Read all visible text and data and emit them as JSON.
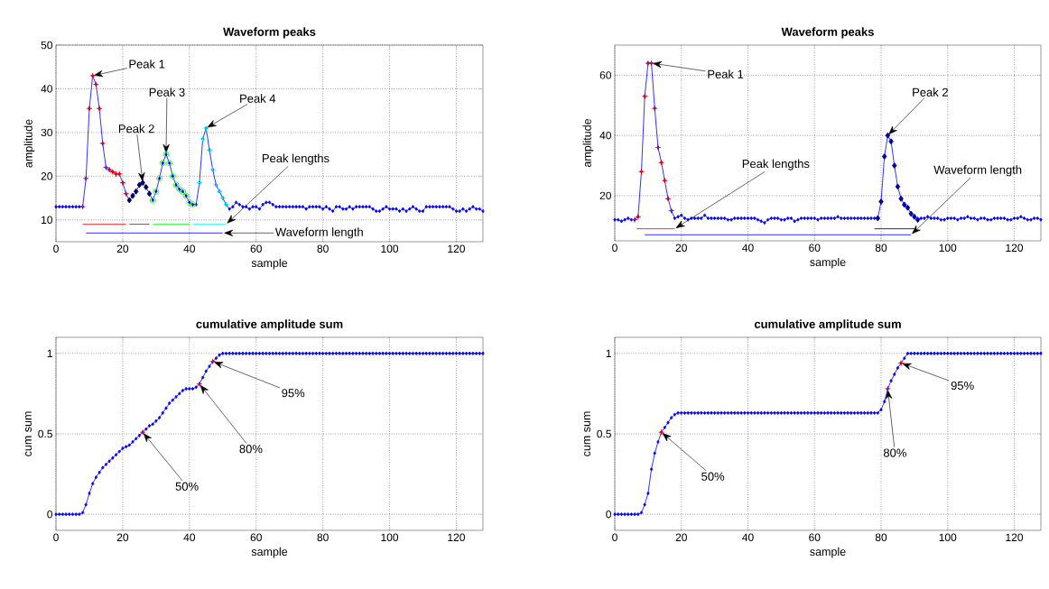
{
  "chart_data": [
    {
      "type": "line",
      "title": "Waveform peaks",
      "xlabel": "sample",
      "ylabel": "amplitude",
      "xlim": [
        0,
        128
      ],
      "ylim": [
        5,
        50
      ],
      "xticks": [
        0,
        20,
        40,
        60,
        80,
        100,
        120
      ],
      "yticks": [
        10,
        20,
        30,
        40,
        50
      ],
      "grid": true,
      "marker": "diamond",
      "x": [
        0,
        1,
        2,
        3,
        4,
        5,
        6,
        7,
        8,
        9,
        10,
        11,
        12,
        13,
        14,
        15,
        16,
        17,
        18,
        19,
        20,
        21,
        22,
        23,
        24,
        25,
        26,
        27,
        28,
        29,
        30,
        31,
        32,
        33,
        34,
        35,
        36,
        37,
        38,
        39,
        40,
        41,
        42,
        43,
        44,
        45,
        46,
        47,
        48,
        49,
        50,
        51,
        52,
        53,
        54,
        55,
        56,
        57,
        58,
        59,
        60,
        61,
        62,
        63,
        64,
        65,
        66,
        67,
        68,
        69,
        70,
        71,
        72,
        73,
        74,
        75,
        76,
        77,
        78,
        79,
        80,
        81,
        82,
        83,
        84,
        85,
        86,
        87,
        88,
        89,
        90,
        91,
        92,
        93,
        94,
        95,
        96,
        97,
        98,
        99,
        100,
        101,
        102,
        103,
        104,
        105,
        106,
        107,
        108,
        109,
        110,
        111,
        112,
        113,
        114,
        115,
        116,
        117,
        118,
        119,
        120,
        121,
        122,
        123,
        124,
        125,
        126,
        127,
        128
      ],
      "series": [
        {
          "color": "#0000ff",
          "values": [
            13,
            13,
            13,
            13,
            13,
            13,
            13,
            13,
            13,
            19.5,
            35.5,
            43,
            41,
            35.5,
            27.5,
            22,
            21.5,
            21,
            20.5,
            20.5,
            18.5,
            16,
            14.5,
            15.5,
            16.5,
            18,
            18.5,
            17.5,
            16,
            14.5,
            16.5,
            19.5,
            23,
            25,
            23,
            20,
            18,
            17,
            16.5,
            15.5,
            14,
            13.5,
            13.5,
            18.5,
            28.5,
            31,
            26,
            21.5,
            18,
            16.5,
            15,
            13.5,
            12.5,
            13,
            14,
            13.5,
            13,
            13,
            12.5,
            13,
            13,
            12.5,
            13.5,
            14,
            14,
            13.5,
            13,
            13,
            13,
            13,
            13,
            13,
            13,
            13,
            13,
            12.5,
            13,
            13,
            13,
            13,
            12.5,
            13,
            12.5,
            12,
            13,
            13,
            12.5,
            12.5,
            13,
            12.5,
            13,
            13,
            13,
            13,
            13,
            12.5,
            12,
            12,
            12.5,
            13,
            12.5,
            12.5,
            12.5,
            12,
            12.5,
            12,
            12.5,
            13,
            12.5,
            12,
            12,
            13,
            13,
            13,
            13,
            13,
            13,
            13,
            13,
            12.5,
            12,
            12,
            12.5,
            12,
            12.5,
            13,
            12.5,
            12.5,
            12
          ]
        },
        {
          "type": "scatter",
          "marker": "cross",
          "color": "#ff0000",
          "x": [
            8,
            9,
            10,
            11,
            12,
            13,
            14,
            15,
            16,
            17,
            18,
            19,
            20,
            21
          ],
          "values": [
            13,
            19.5,
            35.5,
            43,
            41,
            35.5,
            27.5,
            22,
            21.5,
            21,
            20.5,
            20.5,
            18.5,
            16
          ]
        },
        {
          "type": "scatter",
          "marker": "diamond",
          "color": "#000066",
          "x": [
            22,
            23,
            24,
            25,
            26,
            27,
            28
          ],
          "values": [
            14.5,
            15.5,
            16.5,
            18,
            18.5,
            17.5,
            16
          ]
        },
        {
          "type": "scatter",
          "marker": "circle",
          "color": "#00ff00",
          "x": [
            29,
            30,
            31,
            32,
            33,
            34,
            35,
            36,
            37,
            38,
            39,
            40,
            41
          ],
          "values": [
            14.5,
            16.5,
            19.5,
            23,
            25,
            23,
            20,
            18,
            17,
            16.5,
            15.5,
            14,
            13.5
          ]
        },
        {
          "type": "scatter",
          "marker": "cross",
          "color": "#00ffff",
          "x": [
            43,
            44,
            45,
            46,
            47,
            48,
            49,
            50,
            51
          ],
          "values": [
            18.5,
            28.5,
            31,
            26,
            21.5,
            18,
            16.5,
            15,
            13.5
          ]
        },
        {
          "type": "line",
          "marker": "none",
          "color": "#ff0000",
          "x": [
            8,
            21
          ],
          "values": [
            9,
            9
          ]
        },
        {
          "type": "line",
          "marker": "none",
          "color": "#303030",
          "x": [
            22,
            28
          ],
          "values": [
            9,
            9
          ]
        },
        {
          "type": "line",
          "marker": "none",
          "color": "#00ff00",
          "x": [
            29,
            40
          ],
          "values": [
            9,
            9
          ]
        },
        {
          "type": "line",
          "marker": "none",
          "color": "#00ffff",
          "x": [
            41,
            51
          ],
          "values": [
            9,
            9
          ]
        },
        {
          "type": "line",
          "marker": "none",
          "color": "#0000ff",
          "x": [
            9,
            50
          ],
          "values": [
            7,
            7
          ]
        }
      ],
      "annotations": [
        {
          "text": "Peak 1",
          "x": 11,
          "y": 43
        },
        {
          "text": "Peak 2",
          "x": 26,
          "y": 18.5
        },
        {
          "text": "Peak 3",
          "x": 33,
          "y": 25
        },
        {
          "text": "Peak 4",
          "x": 45,
          "y": 31
        },
        {
          "text": "Peak lengths",
          "x": 51,
          "y": 9
        },
        {
          "text": "Waveform length",
          "x": 50,
          "y": 7
        }
      ]
    },
    {
      "type": "line",
      "title": "Waveform peaks",
      "xlabel": "sample",
      "ylabel": "amplitude",
      "xlim": [
        0,
        128
      ],
      "ylim": [
        5,
        70
      ],
      "xticks": [
        0,
        20,
        40,
        60,
        80,
        100,
        120
      ],
      "yticks": [
        20,
        40,
        60
      ],
      "grid": true,
      "marker": "diamond",
      "x": [
        0,
        1,
        2,
        3,
        4,
        5,
        6,
        7,
        8,
        9,
        10,
        11,
        12,
        13,
        14,
        15,
        16,
        17,
        18,
        19,
        20,
        21,
        22,
        23,
        24,
        25,
        26,
        27,
        28,
        29,
        30,
        31,
        32,
        33,
        34,
        35,
        36,
        37,
        38,
        39,
        40,
        41,
        42,
        43,
        44,
        45,
        46,
        47,
        48,
        49,
        50,
        51,
        52,
        53,
        54,
        55,
        56,
        57,
        58,
        59,
        60,
        61,
        62,
        63,
        64,
        65,
        66,
        67,
        68,
        69,
        70,
        71,
        72,
        73,
        74,
        75,
        76,
        77,
        78,
        79,
        80,
        81,
        82,
        83,
        84,
        85,
        86,
        87,
        88,
        89,
        90,
        91,
        92,
        93,
        94,
        95,
        96,
        97,
        98,
        99,
        100,
        101,
        102,
        103,
        104,
        105,
        106,
        107,
        108,
        109,
        110,
        111,
        112,
        113,
        114,
        115,
        116,
        117,
        118,
        119,
        120,
        121,
        122,
        123,
        124,
        125,
        126,
        127,
        128
      ],
      "series": [
        {
          "color": "#0000ff",
          "values": [
            12,
            12,
            11.5,
            12,
            12.5,
            12,
            12,
            13,
            28,
            53,
            64,
            64,
            49,
            36,
            31,
            25,
            19,
            15,
            12.5,
            13,
            13.5,
            12.5,
            12,
            12.5,
            12.5,
            12.5,
            12.5,
            13.5,
            12.5,
            12.5,
            12.5,
            12.5,
            12.5,
            12.5,
            12,
            12,
            12.5,
            12.5,
            12.5,
            12.5,
            12.5,
            12.5,
            12.5,
            12,
            11.5,
            11,
            12,
            12.5,
            12.5,
            12.5,
            12,
            12,
            12.5,
            12.5,
            11.5,
            12,
            12.5,
            12.5,
            12.5,
            12.5,
            12.5,
            12,
            12.5,
            12.5,
            12.5,
            12.5,
            12.5,
            13,
            12.5,
            12.5,
            12.5,
            12.5,
            12.5,
            12.5,
            12.5,
            12.5,
            12.5,
            12.5,
            12.5,
            12.5,
            18,
            33,
            40,
            38,
            30,
            23,
            19,
            17,
            16,
            14,
            13,
            12,
            12.5,
            12.5,
            13,
            12.5,
            12.5,
            12.5,
            12,
            12,
            12.5,
            12.5,
            12.5,
            12,
            12.5,
            12.5,
            13,
            12.5,
            12.5,
            12,
            12.5,
            12.5,
            12,
            12,
            12.5,
            12.5,
            12.5,
            12.5,
            12,
            12,
            12.5,
            12.5,
            13,
            12.5,
            12,
            12,
            12.5,
            12.5,
            12
          ]
        },
        {
          "type": "scatter",
          "marker": "cross",
          "color": "#ff0000",
          "x": [
            6,
            7,
            8,
            9,
            10,
            11,
            12,
            13,
            14,
            15,
            16,
            17
          ],
          "values": [
            12,
            13,
            28,
            53,
            64,
            64,
            49,
            36,
            31,
            25,
            19,
            15
          ]
        },
        {
          "type": "scatter",
          "marker": "diamond",
          "color": "#0000aa",
          "x": [
            79,
            80,
            81,
            82,
            83,
            84,
            85,
            86,
            87,
            88,
            89,
            90,
            91
          ],
          "values": [
            12.5,
            18,
            33,
            40,
            38,
            30,
            23,
            19,
            17,
            16,
            14,
            13,
            12
          ]
        },
        {
          "type": "line",
          "marker": "none",
          "color": "#ff0000",
          "x": [
            6.5,
            18
          ],
          "values": [
            9,
            9
          ]
        },
        {
          "type": "line",
          "marker": "none",
          "color": "#000000",
          "x": [
            78,
            90
          ],
          "values": [
            9,
            9
          ]
        },
        {
          "type": "line",
          "marker": "none",
          "color": "#0000ff",
          "x": [
            9,
            89
          ],
          "values": [
            7,
            7
          ]
        }
      ],
      "annotations": [
        {
          "text": "Peak 1",
          "x": 11,
          "y": 64
        },
        {
          "text": "Peak 2",
          "x": 82,
          "y": 40
        },
        {
          "text": "Peak lengths",
          "x": 18,
          "y": 9
        },
        {
          "text": "Waveform length",
          "x": 89,
          "y": 7
        }
      ]
    },
    {
      "type": "line",
      "title": "cumulative amplitude sum",
      "xlabel": "sample",
      "ylabel": "cum sum",
      "xlim": [
        0,
        128
      ],
      "ylim": [
        -0.1,
        1.1
      ],
      "xticks": [
        0,
        20,
        40,
        60,
        80,
        100,
        120
      ],
      "yticks": [
        0,
        0.5,
        1
      ],
      "grid": true,
      "marker": "diamond",
      "x": [
        0,
        1,
        2,
        3,
        4,
        5,
        6,
        7,
        8,
        9,
        10,
        11,
        12,
        13,
        14,
        15,
        16,
        17,
        18,
        19,
        20,
        21,
        22,
        23,
        24,
        25,
        26,
        27,
        28,
        29,
        30,
        31,
        32,
        33,
        34,
        35,
        36,
        37,
        38,
        39,
        40,
        41,
        42,
        43,
        44,
        45,
        46,
        47,
        48,
        49,
        50,
        51,
        52,
        53,
        54,
        55,
        56,
        57,
        58,
        59,
        60,
        61,
        62,
        63,
        64,
        65,
        66,
        67,
        68,
        69,
        70,
        71,
        72,
        73,
        74,
        75,
        76,
        77,
        78,
        79,
        80,
        81,
        82,
        83,
        84,
        85,
        86,
        87,
        88,
        89,
        90,
        91,
        92,
        93,
        94,
        95,
        96,
        97,
        98,
        99,
        100,
        101,
        102,
        103,
        104,
        105,
        106,
        107,
        108,
        109,
        110,
        111,
        112,
        113,
        114,
        115,
        116,
        117,
        118,
        119,
        120,
        121,
        122,
        123,
        124,
        125,
        126,
        127,
        128
      ],
      "series": [
        {
          "color": "#0000ff",
          "values": [
            0,
            0,
            0,
            0,
            0,
            0,
            0,
            0,
            0.01,
            0.06,
            0.13,
            0.19,
            0.23,
            0.26,
            0.29,
            0.31,
            0.33,
            0.35,
            0.37,
            0.39,
            0.41,
            0.42,
            0.43,
            0.45,
            0.47,
            0.49,
            0.51,
            0.53,
            0.55,
            0.56,
            0.58,
            0.6,
            0.63,
            0.66,
            0.69,
            0.71,
            0.73,
            0.75,
            0.77,
            0.78,
            0.78,
            0.78,
            0.79,
            0.81,
            0.85,
            0.89,
            0.92,
            0.95,
            0.97,
            0.99,
            1,
            1,
            1,
            1,
            1,
            1,
            1,
            1,
            1,
            1,
            1,
            1,
            1,
            1,
            1,
            1,
            1,
            1,
            1,
            1,
            1,
            1,
            1,
            1,
            1,
            1,
            1,
            1,
            1,
            1,
            1,
            1,
            1,
            1,
            1,
            1,
            1,
            1,
            1,
            1,
            1,
            1,
            1,
            1,
            1,
            1,
            1,
            1,
            1,
            1,
            1,
            1,
            1,
            1,
            1,
            1,
            1,
            1,
            1,
            1,
            1,
            1,
            1,
            1,
            1,
            1,
            1,
            1,
            1,
            1,
            1,
            1,
            1,
            1,
            1,
            1,
            1,
            1,
            1
          ]
        },
        {
          "type": "scatter",
          "marker": "cross",
          "color": "#ff0000",
          "x": [
            26,
            43,
            47
          ],
          "values": [
            0.51,
            0.81,
            0.95
          ]
        }
      ],
      "annotations": [
        {
          "text": "50%",
          "x": 26,
          "y": 0.51
        },
        {
          "text": "80%",
          "x": 43,
          "y": 0.81
        },
        {
          "text": "95%",
          "x": 47,
          "y": 0.95
        }
      ]
    },
    {
      "type": "line",
      "title": "cumulative amplitude sum",
      "xlabel": "sample",
      "ylabel": "cum sum",
      "xlim": [
        0,
        128
      ],
      "ylim": [
        -0.1,
        1.1
      ],
      "xticks": [
        0,
        20,
        40,
        60,
        80,
        100,
        120
      ],
      "yticks": [
        0,
        0.5,
        1
      ],
      "grid": true,
      "marker": "diamond",
      "x": [
        0,
        1,
        2,
        3,
        4,
        5,
        6,
        7,
        8,
        9,
        10,
        11,
        12,
        13,
        14,
        15,
        16,
        17,
        18,
        19,
        20,
        21,
        22,
        23,
        24,
        25,
        26,
        27,
        28,
        29,
        30,
        31,
        32,
        33,
        34,
        35,
        36,
        37,
        38,
        39,
        40,
        41,
        42,
        43,
        44,
        45,
        46,
        47,
        48,
        49,
        50,
        51,
        52,
        53,
        54,
        55,
        56,
        57,
        58,
        59,
        60,
        61,
        62,
        63,
        64,
        65,
        66,
        67,
        68,
        69,
        70,
        71,
        72,
        73,
        74,
        75,
        76,
        77,
        78,
        79,
        80,
        81,
        82,
        83,
        84,
        85,
        86,
        87,
        88,
        89,
        90,
        91,
        92,
        93,
        94,
        95,
        96,
        97,
        98,
        99,
        100,
        101,
        102,
        103,
        104,
        105,
        106,
        107,
        108,
        109,
        110,
        111,
        112,
        113,
        114,
        115,
        116,
        117,
        118,
        119,
        120,
        121,
        122,
        123,
        124,
        125,
        126,
        127,
        128
      ],
      "series": [
        {
          "color": "#0000ff",
          "values": [
            0,
            0,
            0,
            0,
            0,
            0,
            0,
            0,
            0.01,
            0.06,
            0.13,
            0.28,
            0.38,
            0.45,
            0.51,
            0.54,
            0.57,
            0.6,
            0.62,
            0.63,
            0.63,
            0.63,
            0.63,
            0.63,
            0.63,
            0.63,
            0.63,
            0.63,
            0.63,
            0.63,
            0.63,
            0.63,
            0.63,
            0.63,
            0.63,
            0.63,
            0.63,
            0.63,
            0.63,
            0.63,
            0.63,
            0.63,
            0.63,
            0.63,
            0.63,
            0.63,
            0.63,
            0.63,
            0.63,
            0.63,
            0.63,
            0.63,
            0.63,
            0.63,
            0.63,
            0.63,
            0.63,
            0.63,
            0.63,
            0.63,
            0.63,
            0.63,
            0.63,
            0.63,
            0.63,
            0.63,
            0.63,
            0.63,
            0.63,
            0.63,
            0.63,
            0.63,
            0.63,
            0.63,
            0.63,
            0.63,
            0.63,
            0.63,
            0.63,
            0.63,
            0.65,
            0.7,
            0.78,
            0.83,
            0.87,
            0.91,
            0.94,
            0.97,
            1,
            1,
            1,
            1,
            1,
            1,
            1,
            1,
            1,
            1,
            1,
            1,
            1,
            1,
            1,
            1,
            1,
            1,
            1,
            1,
            1,
            1,
            1,
            1,
            1,
            1,
            1,
            1,
            1,
            1,
            1,
            1,
            1,
            1,
            1,
            1,
            1,
            1,
            1,
            1,
            1
          ]
        },
        {
          "type": "scatter",
          "marker": "cross",
          "color": "#ff0000",
          "x": [
            14,
            82,
            86
          ],
          "values": [
            0.51,
            0.78,
            0.94
          ]
        }
      ],
      "annotations": [
        {
          "text": "50%",
          "x": 14,
          "y": 0.51
        },
        {
          "text": "80%",
          "x": 82,
          "y": 0.78
        },
        {
          "text": "95%",
          "x": 86,
          "y": 0.94
        }
      ]
    }
  ]
}
